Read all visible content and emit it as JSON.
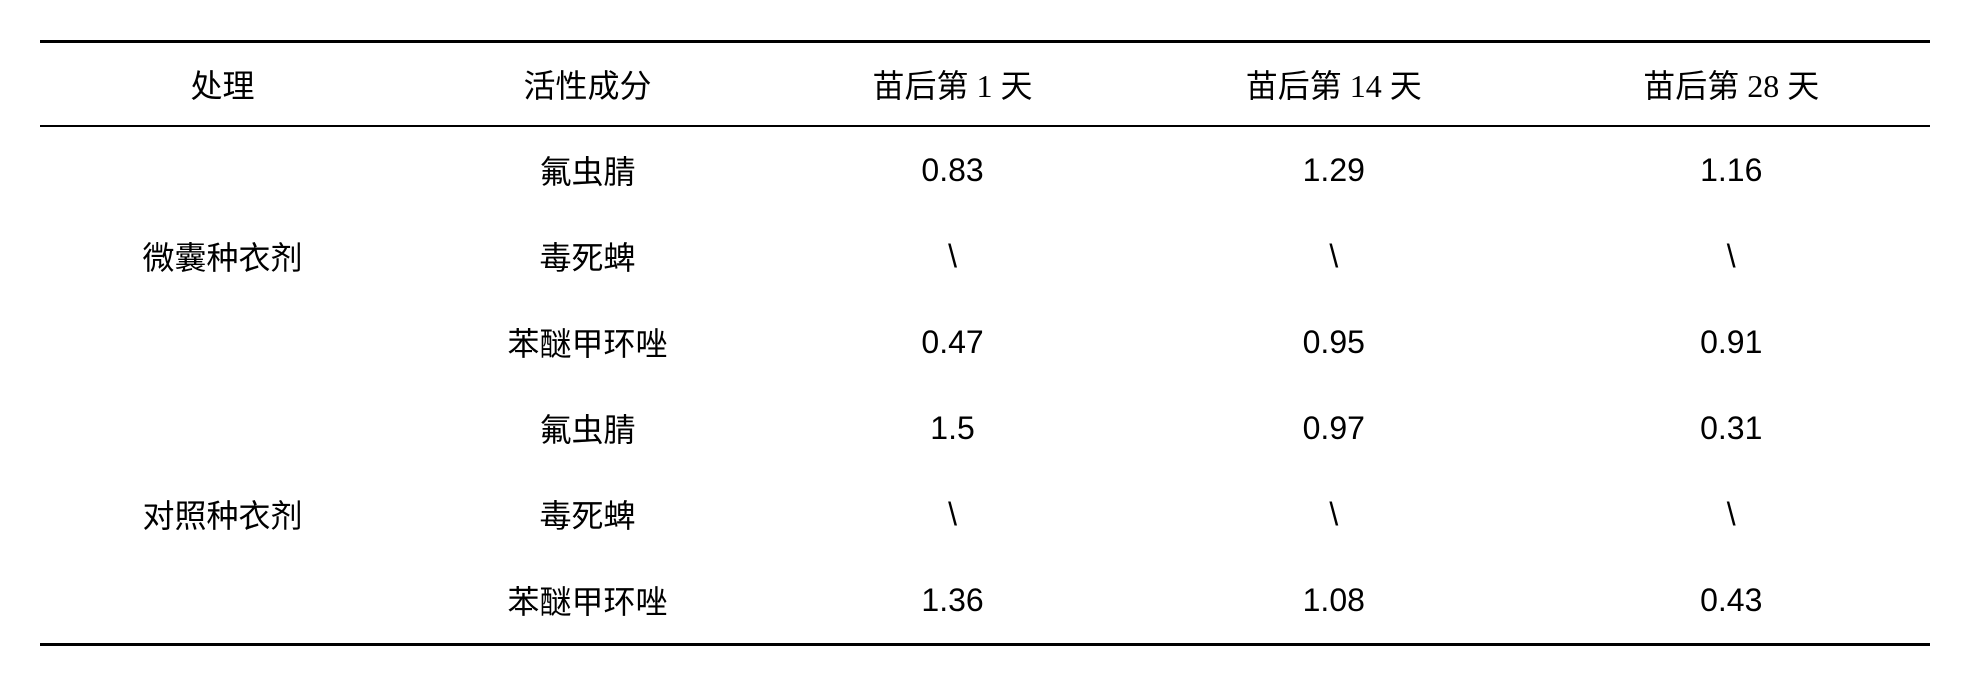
{
  "table": {
    "headers": {
      "treatment": "处理",
      "ingredient": "活性成分",
      "day1": "苗后第 1 天",
      "day14": "苗后第 14 天",
      "day28": "苗后第 28 天"
    },
    "groups": [
      {
        "treatment": "微囊种衣剂",
        "rows": [
          {
            "ingredient": "氟虫腈",
            "day1": "0.83",
            "day14": "1.29",
            "day28": "1.16"
          },
          {
            "ingredient": "毒死蜱",
            "day1": "\\",
            "day14": "\\",
            "day28": "\\"
          },
          {
            "ingredient": "苯醚甲环唑",
            "day1": "0.47",
            "day14": "0.95",
            "day28": "0.91"
          }
        ]
      },
      {
        "treatment": "对照种衣剂",
        "rows": [
          {
            "ingredient": "氟虫腈",
            "day1": "1.5",
            "day14": "0.97",
            "day28": "0.31"
          },
          {
            "ingredient": "毒死蜱",
            "day1": "\\",
            "day14": "\\",
            "day28": "\\"
          },
          {
            "ingredient": "苯醚甲环唑",
            "day1": "1.36",
            "day14": "1.08",
            "day28": "0.43"
          }
        ]
      }
    ]
  }
}
